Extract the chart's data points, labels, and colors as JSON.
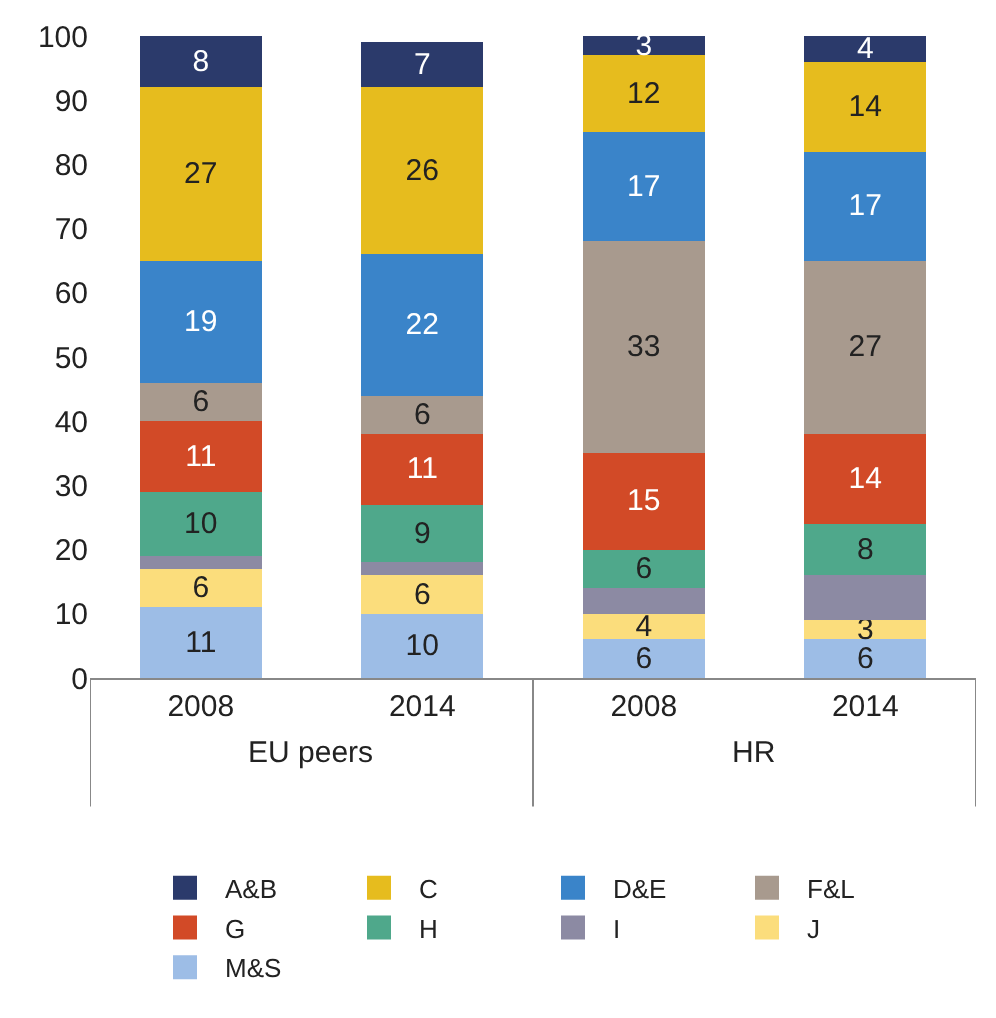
{
  "chart_data": {
    "type": "bar",
    "stacked": true,
    "categories": [
      "2008",
      "2014",
      "2008",
      "2014"
    ],
    "annotations": [
      "EU peers",
      "HR"
    ],
    "series": [
      {
        "name": "M&S",
        "color": "#9dbde6",
        "values": [
          11,
          10,
          6,
          6
        ],
        "value_labels": [
          "11",
          "10",
          "6",
          "6"
        ]
      },
      {
        "name": "J",
        "color": "#fbdd7c",
        "values": [
          6,
          6,
          4,
          3
        ],
        "value_labels": [
          "6",
          "6",
          "4",
          "3"
        ]
      },
      {
        "name": "I",
        "color": "#8c8aa3",
        "values": [
          2,
          2,
          4,
          7
        ],
        "value_labels": [
          null,
          null,
          null,
          null
        ]
      },
      {
        "name": "H",
        "color": "#4fa88b",
        "values": [
          10,
          9,
          6,
          8
        ],
        "value_labels": [
          "10",
          "9",
          "6",
          "8"
        ]
      },
      {
        "name": "G",
        "color": "#d24a27",
        "values": [
          11,
          11,
          15,
          14
        ],
        "value_labels": [
          "11",
          "11",
          "15",
          "14"
        ]
      },
      {
        "name": "F&L",
        "color": "#a89a8e",
        "values": [
          6,
          6,
          33,
          27
        ],
        "value_labels": [
          "6",
          "6",
          "33",
          "27"
        ]
      },
      {
        "name": "D&E",
        "color": "#3a84c9",
        "values": [
          19,
          22,
          17,
          17
        ],
        "value_labels": [
          "19",
          "22",
          "17",
          "17"
        ]
      },
      {
        "name": "C",
        "color": "#e6bc1e",
        "values": [
          27,
          26,
          12,
          14
        ],
        "value_labels": [
          "27",
          "26",
          "12",
          "14"
        ]
      },
      {
        "name": "A&B",
        "color": "#2b3a6b",
        "values": [
          8,
          7,
          3,
          4
        ],
        "value_labels": [
          "8",
          "7",
          "3",
          "4"
        ]
      }
    ],
    "ylim": [
      0,
      100
    ],
    "yticks": [
      0,
      10,
      20,
      30,
      40,
      50,
      60,
      70,
      80,
      90,
      100
    ],
    "legend": "bottom"
  }
}
